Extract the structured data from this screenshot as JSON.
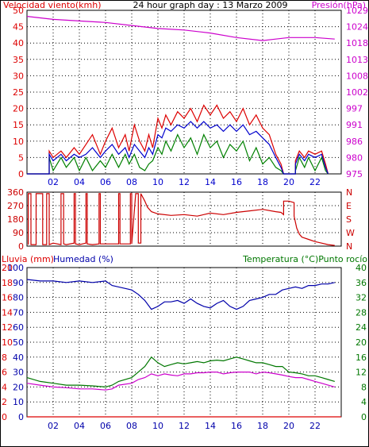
{
  "header": {
    "left_label": "Velocidad viento(kmh)",
    "title": "24 hour graph day : 13 Marzo 2009",
    "right_label": "Presión(hPa)"
  },
  "colors": {
    "wind_avg": "#0000cc",
    "wind_gust": "#dd0000",
    "wind_low": "#008000",
    "pressure": "#cc00cc",
    "direction": "#cc0000",
    "humidity": "#0000aa",
    "temperature": "#007700",
    "dewpoint": "#cc00cc",
    "rain": "#dd0000",
    "axis": "#000000"
  },
  "chart_data": [
    {
      "type": "line",
      "title": "24 hour graph day : 13 Marzo 2009",
      "x_ticks": [
        "02",
        "04",
        "06",
        "08",
        "10",
        "12",
        "14",
        "16",
        "18",
        "20",
        "22"
      ],
      "xlim": [
        0,
        24
      ],
      "y_left_label": "Velocidad viento(kmh)",
      "y_left_ticks": [
        "0",
        "5",
        "10",
        "15",
        "20",
        "25",
        "30",
        "35",
        "40",
        "45",
        "50"
      ],
      "ylim_left": [
        0,
        50
      ],
      "y_right_label": "Presión(hPa)",
      "y_right_ticks": [
        "975",
        "980",
        "986",
        "991",
        "997",
        "1002",
        "1008",
        "1013",
        "1018",
        "1024",
        "1029"
      ],
      "ylim_right": [
        975,
        1029
      ],
      "series": [
        {
          "key": "gust",
          "axis": "left",
          "x": [
            0,
            0,
            1.7,
            1.7,
            2.0,
            2.6,
            3.0,
            3.6,
            4.0,
            4.5,
            5.0,
            5.6,
            6.0,
            6.5,
            7.0,
            7.5,
            7.8,
            8.2,
            8.6,
            9.0,
            9.3,
            9.6,
            10.0,
            10.3,
            10.6,
            11.0,
            11.5,
            12.0,
            12.5,
            13.0,
            13.5,
            14.0,
            14.5,
            15.0,
            15.5,
            16.0,
            16.5,
            17.0,
            17.5,
            18.0,
            18.5,
            19.0,
            19.4,
            19.6,
            19.6,
            20.5,
            20.5,
            20.8,
            21.2,
            21.5,
            22.0,
            22.5,
            22.8,
            23.0,
            23.0
          ],
          "y": [
            0,
            0,
            0,
            7,
            5,
            7,
            5,
            8,
            6,
            9,
            12,
            6,
            10,
            14,
            8,
            12,
            7,
            15,
            10,
            7,
            12,
            8,
            17,
            14,
            18,
            15,
            19,
            17,
            20,
            16,
            21,
            18,
            21,
            17,
            19,
            16,
            20,
            15,
            18,
            14,
            12,
            6,
            3,
            0,
            0,
            0,
            4,
            7,
            5,
            7,
            6,
            7,
            3,
            0,
            0
          ]
        },
        {
          "key": "avg",
          "axis": "left",
          "x": [
            0,
            0,
            1.7,
            1.7,
            2.0,
            2.6,
            3.0,
            3.6,
            4.0,
            4.5,
            5.0,
            5.6,
            6.0,
            6.5,
            7.0,
            7.5,
            7.8,
            8.2,
            8.6,
            9.0,
            9.3,
            9.6,
            10.0,
            10.3,
            10.6,
            11.0,
            11.5,
            12.0,
            12.5,
            13.0,
            13.5,
            14.0,
            14.5,
            15.0,
            15.5,
            16.0,
            16.5,
            17.0,
            17.5,
            18.0,
            18.5,
            19.0,
            19.4,
            19.6,
            19.6,
            20.5,
            20.5,
            20.8,
            21.2,
            21.5,
            22.0,
            22.5,
            22.8,
            23.0,
            23.0
          ],
          "y": [
            0,
            0,
            0,
            6,
            4,
            6,
            4,
            6,
            5,
            6,
            8,
            5,
            7,
            9,
            6,
            8,
            5,
            9,
            7,
            5,
            8,
            6,
            12,
            11,
            14,
            13,
            15,
            14,
            16,
            14,
            16,
            14,
            15,
            13,
            15,
            13,
            15,
            12,
            13,
            11,
            9,
            5,
            2,
            0,
            0,
            0,
            3,
            6,
            4,
            6,
            5,
            6,
            2,
            0,
            0
          ]
        },
        {
          "key": "low",
          "axis": "left",
          "x": [
            0,
            0,
            1.7,
            1.7,
            2.0,
            2.6,
            3.0,
            3.6,
            4.0,
            4.5,
            5.0,
            5.6,
            6.0,
            6.5,
            7.0,
            7.5,
            7.8,
            8.2,
            8.6,
            9.0,
            9.3,
            9.6,
            10.0,
            10.3,
            10.6,
            11.0,
            11.5,
            12.0,
            12.5,
            13.0,
            13.5,
            14.0,
            14.5,
            15.0,
            15.5,
            16.0,
            16.5,
            17.0,
            17.5,
            18.0,
            18.5,
            19.0,
            19.4,
            19.6,
            19.6,
            20.5,
            20.5,
            20.8,
            21.2,
            21.5,
            22.0,
            22.5,
            22.8,
            23.0,
            23.0
          ],
          "y": [
            0,
            0,
            0,
            5,
            1,
            5,
            2,
            5,
            1,
            5,
            1,
            4,
            2,
            6,
            2,
            6,
            3,
            6,
            2,
            1,
            3,
            4,
            8,
            6,
            10,
            7,
            12,
            8,
            11,
            6,
            12,
            8,
            10,
            5,
            9,
            7,
            10,
            4,
            8,
            3,
            5,
            2,
            1,
            0,
            0,
            0,
            1,
            5,
            2,
            5,
            1,
            5,
            1,
            0,
            0
          ]
        },
        {
          "key": "pressure",
          "axis": "right",
          "x": [
            0,
            2,
            4,
            6,
            8,
            10,
            12,
            14,
            16,
            18,
            19,
            20,
            22,
            23.5
          ],
          "y": [
            1027,
            1026,
            1025.5,
            1025,
            1024,
            1023,
            1022.5,
            1021.5,
            1020,
            1019,
            1019.5,
            1020,
            1020,
            1019.5
          ]
        }
      ]
    },
    {
      "type": "line",
      "x_ticks": [
        "02",
        "04",
        "06",
        "08",
        "10",
        "12",
        "14",
        "16",
        "18",
        "20",
        "22"
      ],
      "xlim": [
        0,
        24
      ],
      "y_left_ticks": [
        "0",
        "90",
        "180",
        "270",
        "360"
      ],
      "ylim": [
        0,
        360
      ],
      "y_right_ticks": [
        "N",
        "W",
        "S",
        "E",
        "N"
      ],
      "series": [
        {
          "key": "direction",
          "x": [
            0.1,
            0.1,
            0.3,
            0.3,
            0.7,
            0.7,
            1.0,
            1.2,
            1.2,
            1.5,
            1.5,
            1.7,
            1.7,
            2.0,
            2.6,
            2.6,
            2.8,
            2.8,
            3.0,
            3.6,
            3.6,
            3.7,
            3.7,
            4.0,
            4.5,
            4.5,
            4.6,
            4.6,
            5.0,
            5.5,
            5.5,
            5.6,
            5.6,
            6.0,
            7.0,
            7.0,
            7.1,
            7.1,
            7.5,
            7.9,
            7.9,
            8.0,
            8.0,
            8.3,
            8.5,
            8.5,
            8.7,
            8.7,
            9.0,
            9.2,
            9.5,
            10.0,
            11.0,
            12.0,
            13.0,
            14.0,
            15.0,
            16.0,
            17.0,
            18.0,
            19.0,
            19.4,
            19.6,
            19.6,
            20.0,
            20.4,
            20.4,
            20.6,
            20.8,
            21.0,
            21.5,
            22.0,
            22.5,
            23.0,
            23.5
          ],
          "y": [
            10,
            350,
            350,
            10,
            10,
            350,
            350,
            350,
            10,
            10,
            350,
            350,
            10,
            20,
            10,
            350,
            350,
            15,
            10,
            20,
            350,
            350,
            15,
            10,
            20,
            350,
            350,
            15,
            10,
            15,
            350,
            350,
            15,
            15,
            15,
            350,
            350,
            15,
            15,
            15,
            350,
            350,
            15,
            350,
            350,
            20,
            20,
            350,
            300,
            260,
            230,
            215,
            205,
            210,
            200,
            220,
            210,
            225,
            235,
            245,
            230,
            225,
            210,
            300,
            300,
            290,
            200,
            120,
            80,
            60,
            45,
            30,
            20,
            10,
            5
          ]
        }
      ]
    },
    {
      "type": "line",
      "x_ticks": [
        "02",
        "04",
        "06",
        "08",
        "10",
        "12",
        "14",
        "16",
        "18",
        "20",
        "22"
      ],
      "xlim": [
        0,
        24
      ],
      "y_left1_label": "Lluvia (mm)",
      "y_left1_ticks": [
        "0",
        "2",
        "4",
        "6",
        "8",
        "10",
        "12",
        "14",
        "16",
        "18",
        "20"
      ],
      "ylim_rain": [
        0,
        20
      ],
      "y_left2_label": "Humedad (%)",
      "y_left2_ticks": [
        "0",
        "10",
        "20",
        "30",
        "40",
        "50",
        "60",
        "70",
        "80",
        "90",
        "100"
      ],
      "ylim_humidity": [
        0,
        100
      ],
      "y_right_label": "Temperatura (°C)Punto rocío",
      "y_right_ticks": [
        "0",
        "4",
        "8",
        "12",
        "16",
        "20",
        "24",
        "28",
        "32",
        "36",
        "40"
      ],
      "ylim_temp": [
        0,
        40
      ],
      "series": [
        {
          "key": "rain",
          "axis": "rain",
          "x": [
            0,
            24
          ],
          "y": [
            0,
            0
          ]
        },
        {
          "key": "humidity",
          "axis": "humidity",
          "x": [
            0,
            1,
            2,
            3,
            4,
            5,
            6,
            6.5,
            7,
            8,
            8.5,
            9,
            9.5,
            10,
            10.5,
            11,
            11.5,
            12,
            12.5,
            13,
            13.5,
            14,
            14.5,
            15,
            15.5,
            16,
            16.5,
            17,
            17.5,
            18,
            18.5,
            19,
            19.5,
            20,
            20.5,
            21,
            21.5,
            22,
            22.5,
            23,
            23.5
          ],
          "y": [
            92,
            91,
            91,
            90,
            91,
            90,
            91,
            88,
            87,
            85,
            82,
            78,
            72,
            74,
            77,
            77,
            78,
            76,
            79,
            76,
            74,
            73,
            76,
            78,
            74,
            72,
            74,
            78,
            79,
            80,
            82,
            82,
            85,
            86,
            87,
            86,
            88,
            88,
            89,
            89,
            90
          ]
        },
        {
          "key": "temperature",
          "axis": "temp",
          "x": [
            0,
            1,
            2,
            3,
            4,
            5,
            6,
            6.5,
            7,
            8,
            8.5,
            9,
            9.5,
            10,
            10.5,
            11,
            11.5,
            12,
            12.5,
            13,
            13.5,
            14,
            14.5,
            15,
            15.5,
            16,
            16.5,
            17,
            17.5,
            18,
            18.5,
            19,
            19.5,
            20,
            20.5,
            21,
            21.5,
            22,
            22.5,
            23,
            23.5
          ],
          "y": [
            10.5,
            9.5,
            9,
            8.5,
            8.5,
            8.3,
            8,
            8.5,
            9.5,
            10.5,
            12,
            13.5,
            16,
            14.5,
            13.5,
            14,
            14.5,
            14.2,
            14.5,
            14.8,
            14.5,
            15,
            15.2,
            15,
            15.5,
            16,
            15.5,
            15,
            14.5,
            14.5,
            14,
            13.5,
            13.5,
            12,
            11.8,
            11.5,
            11,
            11,
            10.5,
            10,
            9.5
          ]
        },
        {
          "key": "dewpoint",
          "axis": "temp",
          "x": [
            0,
            1,
            2,
            3,
            4,
            5,
            6,
            6.5,
            7,
            8,
            8.5,
            9,
            9.5,
            10,
            10.5,
            11,
            11.5,
            12,
            12.5,
            13,
            13.5,
            14,
            14.5,
            15,
            15.5,
            16,
            16.5,
            17,
            17.5,
            18,
            18.5,
            19,
            19.5,
            20,
            20.5,
            21,
            21.5,
            22,
            22.5,
            23,
            23.5
          ],
          "y": [
            9,
            8.5,
            8,
            7.8,
            7.5,
            7.5,
            7.2,
            7.5,
            8.5,
            9,
            10,
            10.5,
            11.5,
            11,
            11.5,
            11.2,
            11,
            11.5,
            11.5,
            11.8,
            11.8,
            12,
            12,
            11.5,
            11.8,
            12,
            12,
            12,
            11.5,
            12,
            11.8,
            11.5,
            11.2,
            10.8,
            10.5,
            10.5,
            10,
            9.5,
            9,
            8.5,
            8
          ]
        }
      ]
    }
  ]
}
